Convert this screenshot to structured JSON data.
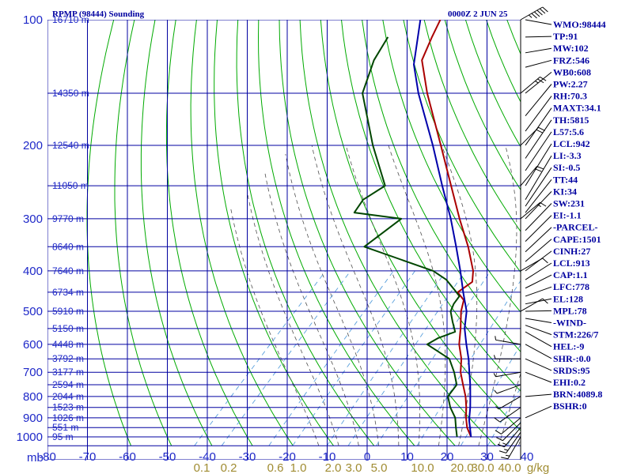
{
  "header": {
    "station_title": "RPMP (98444) Sounding",
    "time_label": "0000Z  2 JUN 25"
  },
  "chart_data": {
    "type": "line",
    "title": "RPMP (98444) Sounding",
    "subtitle": "0000Z  2 JUN 25",
    "y_unit": "mb",
    "pressure_ticks": [
      100,
      200,
      300,
      400,
      500,
      600,
      700,
      800,
      900,
      1000
    ],
    "pressure_range": [
      100,
      1000
    ],
    "temperature_ticks": [
      -80,
      -70,
      -60,
      -50,
      -40,
      -30,
      -20,
      -10,
      0,
      10,
      20,
      30,
      40
    ],
    "temperature_range": [
      -80,
      40
    ],
    "mixing_ratio_ticks": [
      "0.1",
      "0.2",
      "0.6",
      "1.0",
      "2.0",
      "3.0",
      "5.0",
      "10.0",
      "20.0",
      "30.0",
      "40.0"
    ],
    "mixing_ratio_unit": "g/kg",
    "height_labels": [
      {
        "p": 100,
        "label": "16710 m"
      },
      {
        "p": 150,
        "label": "14350 m"
      },
      {
        "p": 200,
        "label": "12540 m"
      },
      {
        "p": 250,
        "label": "11050 m"
      },
      {
        "p": 300,
        "label": "9770 m"
      },
      {
        "p": 350,
        "label": "8640 m"
      },
      {
        "p": 400,
        "label": "7640 m"
      },
      {
        "p": 450,
        "label": "6734 m"
      },
      {
        "p": 500,
        "label": "5910 m"
      },
      {
        "p": 550,
        "label": "5150 m"
      },
      {
        "p": 600,
        "label": "4448 m"
      },
      {
        "p": 650,
        "label": "3792 m"
      },
      {
        "p": 700,
        "label": "3177 m"
      },
      {
        "p": 750,
        "label": "2594 m"
      },
      {
        "p": 800,
        "label": "2044 m"
      },
      {
        "p": 850,
        "label": "1523 m"
      },
      {
        "p": 900,
        "label": "1026 m"
      },
      {
        "p": 950,
        "label": "551 m"
      },
      {
        "p": 1000,
        "label": "95 m"
      }
    ],
    "series": [
      {
        "key": "temperature",
        "color": "#aa0000",
        "points": [
          {
            "p": 1000,
            "t": 26.0
          },
          {
            "p": 950,
            "t": 22.8
          },
          {
            "p": 900,
            "t": 20.2
          },
          {
            "p": 850,
            "t": 17.8
          },
          {
            "p": 800,
            "t": 15.0
          },
          {
            "p": 750,
            "t": 11.6
          },
          {
            "p": 700,
            "t": 8.0
          },
          {
            "p": 650,
            "t": 5.0
          },
          {
            "p": 600,
            "t": 1.0
          },
          {
            "p": 550,
            "t": -2.4
          },
          {
            "p": 500,
            "t": -6.4
          },
          {
            "p": 470,
            "t": -8.4
          },
          {
            "p": 450,
            "t": -11.8
          },
          {
            "p": 425,
            "t": -10.6
          },
          {
            "p": 400,
            "t": -13.0
          },
          {
            "p": 350,
            "t": -20.0
          },
          {
            "p": 300,
            "t": -28.8
          },
          {
            "p": 250,
            "t": -38.8
          },
          {
            "p": 200,
            "t": -51.0
          },
          {
            "p": 150,
            "t": -66.8
          },
          {
            "p": 125,
            "t": -76.0
          },
          {
            "p": 110,
            "t": -79.0
          },
          {
            "p": 100,
            "t": -81.0
          }
        ]
      },
      {
        "key": "dewpoint",
        "color": "#004600",
        "points": [
          {
            "p": 1000,
            "t": 22.5
          },
          {
            "p": 950,
            "t": 20.0
          },
          {
            "p": 900,
            "t": 17.5
          },
          {
            "p": 850,
            "t": 13.8
          },
          {
            "p": 800,
            "t": 10.6
          },
          {
            "p": 750,
            "t": 10.0
          },
          {
            "p": 700,
            "t": 6.4
          },
          {
            "p": 650,
            "t": 2.0
          },
          {
            "p": 600,
            "t": -7.0
          },
          {
            "p": 580,
            "t": -5.8
          },
          {
            "p": 560,
            "t": -3.0
          },
          {
            "p": 530,
            "t": -6.0
          },
          {
            "p": 500,
            "t": -9.0
          },
          {
            "p": 480,
            "t": -10.0
          },
          {
            "p": 460,
            "t": -10.4
          },
          {
            "p": 445,
            "t": -13.0
          },
          {
            "p": 420,
            "t": -17.6
          },
          {
            "p": 400,
            "t": -23.0
          },
          {
            "p": 350,
            "t": -46.0
          },
          {
            "p": 300,
            "t": -43.4
          },
          {
            "p": 290,
            "t": -56.6
          },
          {
            "p": 270,
            "t": -57.5
          },
          {
            "p": 250,
            "t": -55.3
          },
          {
            "p": 200,
            "t": -68.0
          },
          {
            "p": 150,
            "t": -83.0
          },
          {
            "p": 125,
            "t": -88.0
          },
          {
            "p": 110,
            "t": -90.0
          }
        ]
      },
      {
        "key": "parcel",
        "color": "#0000aa",
        "points": [
          {
            "p": 1000,
            "t": 26.0
          },
          {
            "p": 913,
            "t": 21.6
          },
          {
            "p": 850,
            "t": 18.8
          },
          {
            "p": 800,
            "t": 16.2
          },
          {
            "p": 750,
            "t": 13.4
          },
          {
            "p": 700,
            "t": 10.2
          },
          {
            "p": 650,
            "t": 6.8
          },
          {
            "p": 600,
            "t": 2.8
          },
          {
            "p": 550,
            "t": -1.4
          },
          {
            "p": 500,
            "t": -5.0
          },
          {
            "p": 450,
            "t": -10.4
          },
          {
            "p": 400,
            "t": -16.2
          },
          {
            "p": 350,
            "t": -23.0
          },
          {
            "p": 300,
            "t": -31.0
          },
          {
            "p": 250,
            "t": -41.0
          },
          {
            "p": 200,
            "t": -53.0
          },
          {
            "p": 150,
            "t": -69.0
          },
          {
            "p": 128,
            "t": -77.0
          },
          {
            "p": 100,
            "t": -86.0
          }
        ]
      }
    ],
    "wind_barbs": [
      {
        "p": 1000,
        "dir": 210,
        "kt": 15
      },
      {
        "p": 975,
        "dir": 215,
        "kt": 15
      },
      {
        "p": 950,
        "dir": 220,
        "kt": 15
      },
      {
        "p": 925,
        "dir": 225,
        "kt": 10
      },
      {
        "p": 900,
        "dir": 230,
        "kt": 10
      },
      {
        "p": 850,
        "dir": 235,
        "kt": 10
      },
      {
        "p": 800,
        "dir": 240,
        "kt": 5
      },
      {
        "p": 750,
        "dir": 250,
        "kt": 5
      },
      {
        "p": 700,
        "dir": 260,
        "kt": 5
      },
      {
        "p": 650,
        "dir": 270,
        "kt": 5
      },
      {
        "p": 600,
        "dir": 280,
        "kt": 5
      },
      {
        "p": 500,
        "dir": 60,
        "kt": 10
      },
      {
        "p": 400,
        "dir": 60,
        "kt": 10
      },
      {
        "p": 300,
        "dir": 50,
        "kt": 15
      },
      {
        "p": 250,
        "dir": 40,
        "kt": 20
      },
      {
        "p": 200,
        "dir": 45,
        "kt": 20
      },
      {
        "p": 150,
        "dir": 50,
        "kt": 25
      },
      {
        "p": 100,
        "dir": 60,
        "kt": 55
      }
    ]
  },
  "indices": [
    "WMO:98444",
    "TP:91",
    "MW:102",
    "FRZ:546",
    "WB0:608",
    "PW:2.27",
    "RH:70.3",
    "MAXT:34.1",
    "TH:5815",
    "L57:5.6",
    "LCL:942",
    "LI:-3.3",
    "SI:-0.5",
    "TT:44",
    "KI:34",
    "SW:231",
    "EI:-1.1",
    "-PARCEL-",
    "CAPE:1501",
    "CINH:27",
    "LCL:913",
    "CAP:1.1",
    "LFC:778",
    "EL:128",
    "MPL:78",
    "-WIND-",
    "STM:226/7",
    "HEL:-9",
    "SHR-:0.0",
    "SRDS:95",
    "EHI:0.2",
    "BRN:4089.8",
    "BSHR:0"
  ],
  "colors": {
    "grid": "#0000a0",
    "dry_adiabat": "#00aa00",
    "moist_adiabat": "#505050",
    "mixing_ratio": "#5aa0dc"
  }
}
